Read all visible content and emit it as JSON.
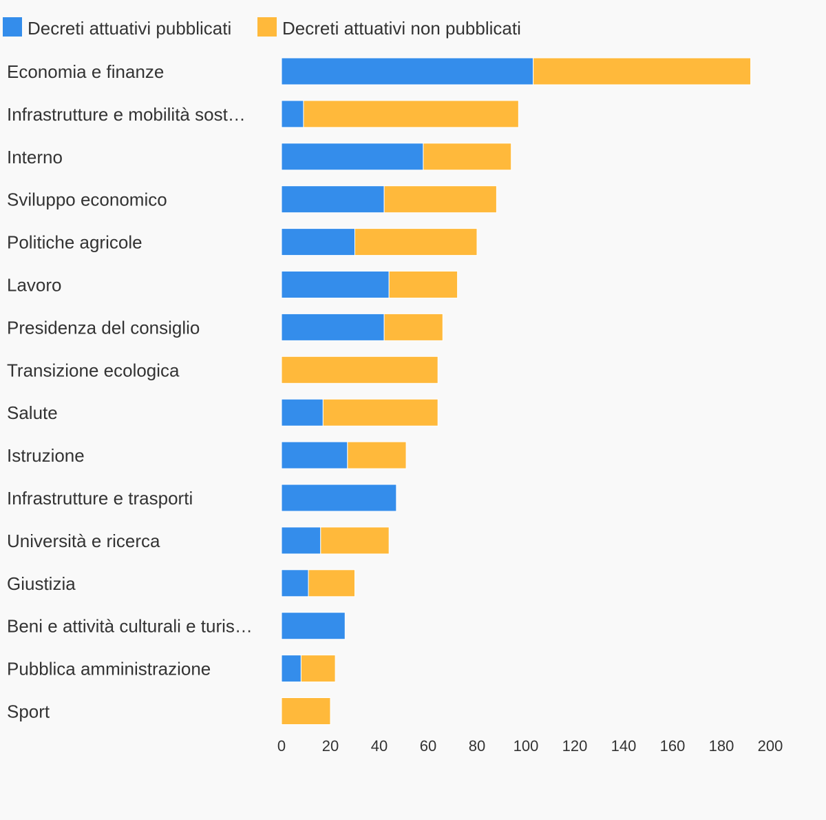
{
  "chart_data": {
    "type": "bar",
    "orientation": "horizontal",
    "stacked": true,
    "title": "",
    "xlabel": "",
    "ylabel": "",
    "xlim": [
      0,
      200
    ],
    "x_ticks": [
      "0",
      "20",
      "40",
      "60",
      "80",
      "100",
      "120",
      "140",
      "160",
      "180",
      "200"
    ],
    "grid": false,
    "legend_position": "top-left",
    "categories": [
      "Economia e finanze",
      "Infrastrutture e mobilità sost…",
      "Interno",
      "Sviluppo economico",
      "Politiche agricole",
      "Lavoro",
      "Presidenza del consiglio",
      "Transizione ecologica",
      "Salute",
      "Istruzione",
      "Infrastrutture e trasporti",
      "Università e ricerca",
      "Giustizia",
      "Beni e attività culturali e turis…",
      "Pubblica amministrazione",
      "Sport"
    ],
    "series": [
      {
        "name": "Decreti attuativi pubblicati",
        "color": "#348deb",
        "values": [
          103,
          9,
          58,
          42,
          30,
          44,
          42,
          0,
          17,
          27,
          47,
          16,
          11,
          26,
          8,
          0
        ]
      },
      {
        "name": "Decreti attuativi non pubblicati",
        "color": "#ffb93b",
        "values": [
          89,
          88,
          36,
          46,
          50,
          28,
          24,
          64,
          47,
          24,
          0,
          28,
          19,
          0,
          14,
          20
        ]
      }
    ]
  }
}
